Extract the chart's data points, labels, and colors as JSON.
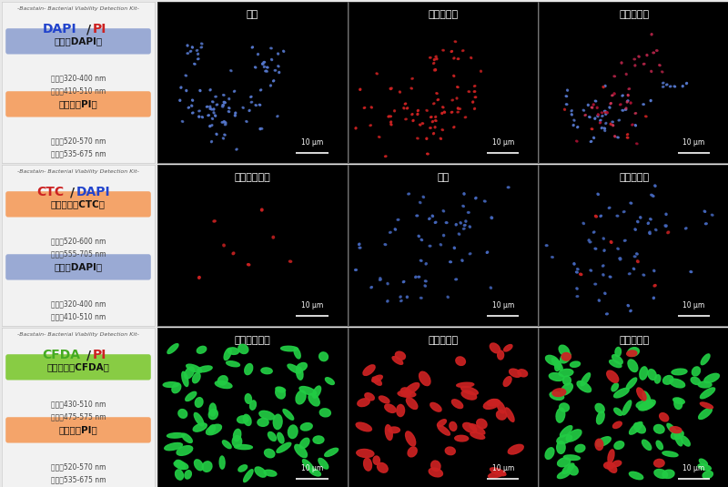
{
  "bg_color": "#e8e8e8",
  "left_bg": "#f2f2f2",
  "border_color": "#cccccc",
  "rows": [
    {
      "kit_name": "-Bacstain- Bacterial Viability Detection Kit-",
      "title_parts": [
        {
          "text": "DAPI",
          "color": "#2244cc"
        },
        {
          "text": "/",
          "color": "#222222"
        },
        {
          "text": "PI",
          "color": "#cc2222"
        }
      ],
      "labels": [
        {
          "text": "全菌（DAPI）",
          "bg_color": "#9aaad4",
          "text_color": "#111111",
          "excitation": "励起：320-400 nm",
          "emission": "蛍光：410-510 nm"
        },
        {
          "text": "膜損傷（PI）",
          "bg_color": "#f4a46a",
          "text_color": "#111111",
          "excitation": "励起：520-570 nm",
          "emission": "蛍光：535-675 nm"
        }
      ]
    },
    {
      "kit_name": "-Bacstain- Bacterial Viability Detection Kit-",
      "title_parts": [
        {
          "text": "CTC",
          "color": "#cc2222"
        },
        {
          "text": "/",
          "color": "#222222"
        },
        {
          "text": "DAPI",
          "color": "#2244cc"
        }
      ],
      "labels": [
        {
          "text": "呼吸活性（CTC）",
          "bg_color": "#f4a46a",
          "text_color": "#111111",
          "excitation": "励起：520-600 nm",
          "emission": "蛍光：555-705 nm"
        },
        {
          "text": "全菌（DAPI）",
          "bg_color": "#9aaad4",
          "text_color": "#111111",
          "excitation": "励起：320-400 nm",
          "emission": "蛍光：410-510 nm"
        }
      ]
    },
    {
      "kit_name": "-Bacstain- Bacterial Viability Detection Kit-",
      "title_parts": [
        {
          "text": "CFDA",
          "color": "#44aa22"
        },
        {
          "text": "/",
          "color": "#222222"
        },
        {
          "text": "PI",
          "color": "#cc2222"
        }
      ],
      "labels": [
        {
          "text": "酵素活性（CFDA）",
          "bg_color": "#88cc44",
          "text_color": "#111111",
          "excitation": "励起：430-510 nm",
          "emission": "蛍光：475-575 nm"
        },
        {
          "text": "膜損傷（PI）",
          "bg_color": "#f4a46a",
          "text_color": "#111111",
          "excitation": "励起：520-570 nm",
          "emission": "蛍光：535-675 nm"
        }
      ]
    }
  ],
  "image_panels": [
    [
      {
        "title": "全菌",
        "style": "blue_tiny_cluster"
      },
      {
        "title": "膜損傷あり",
        "style": "red_tiny_cluster"
      },
      {
        "title": "重ね合わせ",
        "style": "merge_row1"
      }
    ],
    [
      {
        "title": "呼吸活性あり",
        "style": "red_very_sparse"
      },
      {
        "title": "全菌",
        "style": "blue_scattered"
      },
      {
        "title": "重ね合わせ",
        "style": "merge_row2"
      }
    ],
    [
      {
        "title": "酵素活性あり",
        "style": "green_bacteria"
      },
      {
        "title": "膜損傷あり",
        "style": "red_bacteria"
      },
      {
        "title": "重ね合わせ",
        "style": "merge_row3"
      }
    ]
  ],
  "scalebar_text": "10 μm"
}
